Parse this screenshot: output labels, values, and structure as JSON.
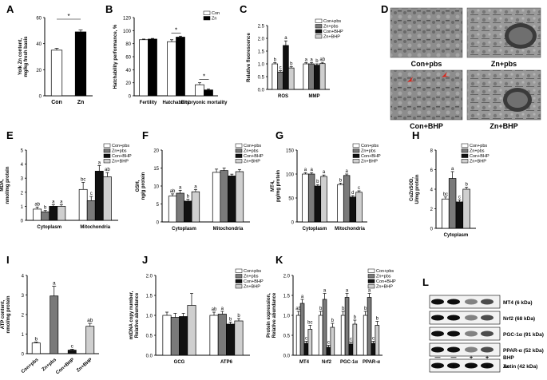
{
  "figure": {
    "panels": [
      {
        "letter": "A"
      },
      {
        "letter": "B"
      },
      {
        "letter": "C"
      },
      {
        "letter": "D"
      },
      {
        "letter": "E"
      },
      {
        "letter": "F"
      },
      {
        "letter": "G"
      },
      {
        "letter": "H"
      },
      {
        "letter": "I"
      },
      {
        "letter": "J"
      },
      {
        "letter": "K"
      },
      {
        "letter": "L"
      }
    ]
  },
  "colors": {
    "con_pbs": "#ffffff",
    "zn_pbs": "#7a7a7a",
    "con_bhp": "#111111",
    "zn_bhp": "#cfcfcf",
    "con": "#ffffff",
    "zn": "#000000",
    "sig_red": "#d9261c"
  },
  "chart_data": [
    {
      "panel": "A",
      "type": "bar",
      "ylabel": "Yolk Zn content,\nmg/kg fresh basis",
      "categories": [
        "Con",
        "Zn"
      ],
      "values": [
        35,
        49
      ],
      "errors": [
        1.5,
        1.5
      ],
      "ylim": [
        0,
        60
      ],
      "yticks": [
        0,
        20,
        40,
        60
      ],
      "annotations": [
        {
          "text": "*",
          "between": [
            "Con",
            "Zn"
          ]
        }
      ]
    },
    {
      "panel": "B",
      "type": "bar",
      "ylabel": "Hatchability performance, %",
      "categories": [
        "Fertility",
        "Hatchability",
        "Embryonic mortality"
      ],
      "series": [
        {
          "name": "Con",
          "values": [
            86,
            83,
            17
          ],
          "errors": [
            1,
            3,
            3
          ]
        },
        {
          "name": "Zn",
          "values": [
            87,
            90,
            9
          ],
          "errors": [
            1,
            1.5,
            1.5
          ]
        }
      ],
      "ylim": [
        0,
        120
      ],
      "yticks": [
        0,
        20,
        40,
        60,
        80,
        100,
        120
      ],
      "annotations": [
        {
          "text": "*",
          "category": "Hatchability"
        },
        {
          "text": "*",
          "category": "Embryonic mortality"
        }
      ],
      "legend": "top-right"
    },
    {
      "panel": "C",
      "type": "bar",
      "ylabel": "Relative fluorescence",
      "categories": [
        "ROS",
        "MMP"
      ],
      "series": [
        {
          "name": "Con+pbs",
          "values": [
            1.0,
            1.0
          ],
          "errors": [
            0.05,
            0.05
          ]
        },
        {
          "name": "Zn+pbs",
          "values": [
            0.68,
            1.0
          ],
          "errors": [
            0.05,
            0.05
          ]
        },
        {
          "name": "Con+BHP",
          "values": [
            1.72,
            0.95
          ],
          "errors": [
            0.18,
            0.05
          ]
        },
        {
          "name": "Zn+BHP",
          "values": [
            0.84,
            1.01
          ],
          "errors": [
            0.05,
            0.05
          ]
        }
      ],
      "letters": [
        [
          "b",
          "c",
          "a",
          "b"
        ],
        [
          "a",
          "a",
          "b",
          "ab"
        ]
      ],
      "ylim": [
        0,
        2.5
      ],
      "yticks": [
        0.0,
        0.5,
        1.0,
        1.5,
        2.0,
        2.5
      ],
      "legend": "top-right"
    },
    {
      "panel": "E",
      "type": "bar",
      "ylabel": "MDA,\nnmol/mg protein",
      "categories": [
        "Cytoplasm",
        "Mitochondria"
      ],
      "series": [
        {
          "name": "Con+pbs",
          "values": [
            0.8,
            2.2
          ],
          "errors": [
            0.15,
            0.5
          ]
        },
        {
          "name": "Zn+pbs",
          "values": [
            0.6,
            1.4
          ],
          "errors": [
            0.1,
            0.3
          ]
        },
        {
          "name": "Con+BHP",
          "values": [
            1.0,
            3.5
          ],
          "errors": [
            0.1,
            0.4
          ]
        },
        {
          "name": "Zn+BHP",
          "values": [
            1.0,
            3.1
          ],
          "errors": [
            0.1,
            0.3
          ]
        }
      ],
      "letters": [
        [
          "ab",
          "b",
          "a",
          "a"
        ],
        [
          "bc",
          "c",
          "a",
          "ab"
        ]
      ],
      "ylim": [
        0,
        5
      ],
      "yticks": [
        0,
        1,
        2,
        3,
        4,
        5
      ],
      "legend": "top-right"
    },
    {
      "panel": "F",
      "type": "bar",
      "ylabel": "GSH,\nng/g protein",
      "categories": [
        "Cytoplasm",
        "Mitochondria"
      ],
      "series": [
        {
          "name": "Con+pbs",
          "values": [
            7.2,
            13.8
          ],
          "errors": [
            0.6,
            0.9
          ]
        },
        {
          "name": "Zn+pbs",
          "values": [
            8.0,
            14.3
          ],
          "errors": [
            0.8,
            0.7
          ]
        },
        {
          "name": "Con+BHP",
          "values": [
            5.8,
            12.8
          ],
          "errors": [
            0.5,
            0.5
          ]
        },
        {
          "name": "Zn+BHP",
          "values": [
            8.4,
            14.0
          ],
          "errors": [
            0.6,
            0.6
          ]
        }
      ],
      "letters": [
        [
          "ab",
          "a",
          "b",
          "a"
        ],
        [
          "",
          "",
          "",
          ""
        ]
      ],
      "ylim": [
        0,
        20
      ],
      "yticks": [
        0,
        5,
        10,
        15,
        20
      ],
      "legend": "top-right"
    },
    {
      "panel": "G",
      "type": "bar",
      "ylabel": "MT4,\npg/mg protein",
      "categories": [
        "Cytoplasm",
        "Mitochondria"
      ],
      "series": [
        {
          "name": "Con+pbs",
          "values": [
            100,
            78
          ],
          "errors": [
            3,
            3
          ]
        },
        {
          "name": "Zn+pbs",
          "values": [
            100,
            97
          ],
          "errors": [
            3,
            3
          ]
        },
        {
          "name": "Con+BHP",
          "values": [
            75,
            52
          ],
          "errors": [
            3,
            3
          ]
        },
        {
          "name": "Zn+BHP",
          "values": [
            95,
            62
          ],
          "errors": [
            3,
            3
          ]
        }
      ],
      "letters": [
        [
          "a",
          "a",
          "b",
          "a"
        ],
        [
          "b",
          "a",
          "d",
          "c"
        ]
      ],
      "ylim": [
        0,
        150
      ],
      "yticks": [
        0,
        50,
        100,
        150
      ],
      "legend": "top-right"
    },
    {
      "panel": "H",
      "type": "bar",
      "ylabel": "CuZnSOD,\nU/mg protein",
      "categories": [
        "Cytoplasm"
      ],
      "series": [
        {
          "name": "Con+pbs",
          "values": [
            3.0
          ],
          "errors": [
            0.2
          ]
        },
        {
          "name": "Zn+pbs",
          "values": [
            5.1
          ],
          "errors": [
            0.7
          ]
        },
        {
          "name": "Con+BHP",
          "values": [
            2.7
          ],
          "errors": [
            0.2
          ]
        },
        {
          "name": "Zn+BHP",
          "values": [
            4.0
          ],
          "errors": [
            0.2
          ]
        }
      ],
      "letters": [
        [
          "bc",
          "a",
          "c",
          "b"
        ]
      ],
      "ylim": [
        0,
        8
      ],
      "yticks": [
        0,
        2,
        4,
        6,
        8
      ],
      "legend": "top-right"
    },
    {
      "panel": "I",
      "type": "bar",
      "ylabel": "ATP content,\nnmol/mg protein",
      "categories": [
        "Con+pbs",
        "Zn+pbs",
        "Con+BHP",
        "Zn+BHP"
      ],
      "values": [
        0.55,
        2.95,
        0.18,
        1.4
      ],
      "errors": [
        0.05,
        0.5,
        0.05,
        0.15
      ],
      "letters": [
        "b",
        "a",
        "c",
        "ab"
      ],
      "ylim": [
        0,
        4
      ],
      "yticks": [
        0,
        1,
        2,
        3,
        4
      ]
    },
    {
      "panel": "J",
      "type": "bar",
      "ylabel": "mtDNA copy number,\nRelative abundance",
      "categories": [
        "GCG",
        "ATP6"
      ],
      "series": [
        {
          "name": "Con+pbs",
          "values": [
            1.0,
            1.0
          ],
          "errors": [
            0.08,
            0.08
          ]
        },
        {
          "name": "Zn+pbs",
          "values": [
            0.95,
            1.03
          ],
          "errors": [
            0.1,
            0.07
          ]
        },
        {
          "name": "Con+BHP",
          "values": [
            0.97,
            0.78
          ],
          "errors": [
            0.08,
            0.05
          ]
        },
        {
          "name": "Zn+BHP",
          "values": [
            1.25,
            0.86
          ],
          "errors": [
            0.3,
            0.06
          ]
        }
      ],
      "letters": [
        [
          "",
          "",
          "",
          ""
        ],
        [
          "ab",
          "a",
          "b",
          "b"
        ]
      ],
      "ylim": [
        0,
        2.0
      ],
      "yticks": [
        0.0,
        0.5,
        1.0,
        1.5,
        2.0
      ],
      "legend": "top-right"
    },
    {
      "panel": "K",
      "type": "bar",
      "ylabel": "Protein expression,\nRelative abundance",
      "categories": [
        "MT4",
        "Nrf2",
        "PGC-1α",
        "PPAR-α"
      ],
      "series": [
        {
          "name": "Con+pbs",
          "values": [
            1.0,
            1.0,
            1.0,
            1.0
          ],
          "errors": [
            0.1,
            0.1,
            0.1,
            0.1
          ]
        },
        {
          "name": "Zn+pbs",
          "values": [
            1.3,
            1.4,
            1.45,
            1.45
          ],
          "errors": [
            0.1,
            0.15,
            0.1,
            0.1
          ]
        },
        {
          "name": "Con+BHP",
          "values": [
            0.3,
            0.2,
            0.28,
            0.3
          ],
          "errors": [
            0.05,
            0.05,
            0.05,
            0.05
          ]
        },
        {
          "name": "Zn+BHP",
          "values": [
            0.65,
            0.7,
            0.78,
            0.75
          ],
          "errors": [
            0.1,
            0.1,
            0.1,
            0.1
          ]
        }
      ],
      "letters": [
        [
          "ab",
          "a",
          "c",
          "bc"
        ],
        [
          "b",
          "a",
          "c",
          "b"
        ],
        [
          "b",
          "a",
          "c",
          "b"
        ],
        [
          "b",
          "a",
          "c",
          "b"
        ]
      ],
      "ylim": [
        0,
        2.0
      ],
      "yticks": [
        0.0,
        0.5,
        1.0,
        1.5,
        2.0
      ],
      "legend": "top-right"
    },
    {
      "panel": "L",
      "type": "table",
      "blots": [
        "MT4 (6 kDa)",
        "Nrf2 (68 kDa)",
        "PGC-1α (91 kDa)",
        "PPAR-α (52 kDa)",
        "Actin (42 kDa)"
      ],
      "treatments": {
        "BHP": [
          "—",
          "—",
          "+",
          "+"
        ],
        "Zn": [
          "—",
          "+",
          "—",
          "+"
        ]
      }
    }
  ],
  "micrographs": {
    "labels": [
      "Con+pbs",
      "Zn+pbs",
      "Con+BHP",
      "Zn+BHP"
    ]
  }
}
